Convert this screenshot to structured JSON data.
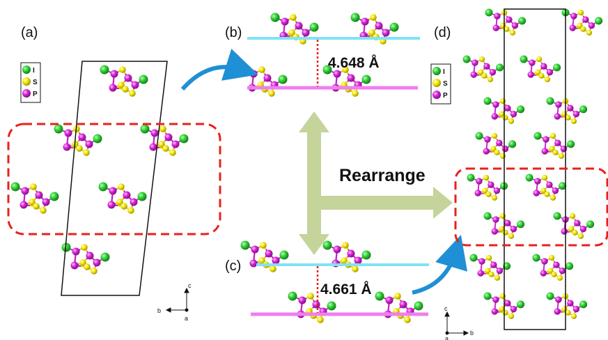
{
  "panels": {
    "a": "(a)",
    "b": "(b)",
    "c": "(c)",
    "d": "(d)"
  },
  "legend": {
    "items": [
      {
        "label": "I",
        "color": "#22c42a"
      },
      {
        "label": "S",
        "color": "#f2e500"
      },
      {
        "label": "P",
        "color": "#d21cd2"
      }
    ]
  },
  "distances": {
    "b": "4.648 Å",
    "c": "4.661 Å"
  },
  "arrow_label": "Rearrange",
  "axes": {
    "left": {
      "c": "c",
      "b": "b",
      "a": "a"
    },
    "right": {
      "c": "c",
      "b": "b",
      "a": "a"
    }
  },
  "colors": {
    "iodine": "#22c42a",
    "sulfur": "#f2e500",
    "phosphorus": "#d21cd2",
    "dashed_box": "#e8211b",
    "layer_cyan": "#7fe3f5",
    "layer_magenta": "#ee7fee",
    "big_arrow": "#c4d49a",
    "curved_arrow": "#1f8fd6"
  }
}
